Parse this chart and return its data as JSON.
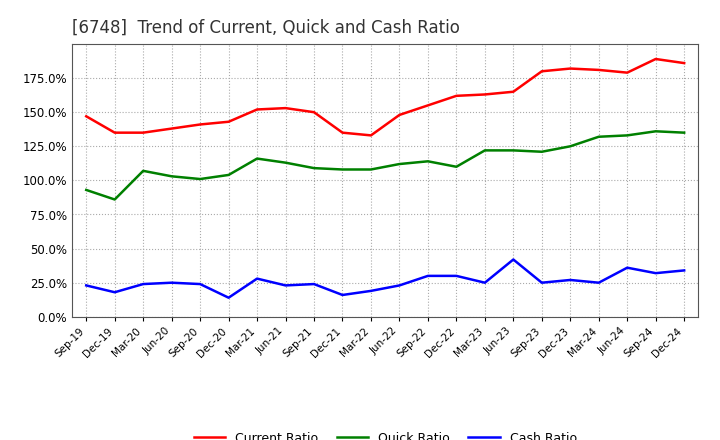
{
  "title": "[6748]  Trend of Current, Quick and Cash Ratio",
  "x_labels": [
    "Sep-19",
    "Dec-19",
    "Mar-20",
    "Jun-20",
    "Sep-20",
    "Dec-20",
    "Mar-21",
    "Jun-21",
    "Sep-21",
    "Dec-21",
    "Mar-22",
    "Jun-22",
    "Sep-22",
    "Dec-22",
    "Mar-23",
    "Jun-23",
    "Sep-23",
    "Dec-23",
    "Mar-24",
    "Jun-24",
    "Sep-24",
    "Dec-24"
  ],
  "current_ratio": [
    147.0,
    135.0,
    135.0,
    138.0,
    141.0,
    143.0,
    152.0,
    153.0,
    150.0,
    135.0,
    133.0,
    148.0,
    155.0,
    162.0,
    163.0,
    165.0,
    180.0,
    182.0,
    181.0,
    179.0,
    189.0,
    186.0
  ],
  "quick_ratio": [
    93.0,
    86.0,
    107.0,
    103.0,
    101.0,
    104.0,
    116.0,
    113.0,
    109.0,
    108.0,
    108.0,
    112.0,
    114.0,
    110.0,
    122.0,
    122.0,
    121.0,
    125.0,
    132.0,
    133.0,
    136.0,
    135.0
  ],
  "cash_ratio": [
    23.0,
    18.0,
    24.0,
    25.0,
    24.0,
    14.0,
    28.0,
    23.0,
    24.0,
    16.0,
    19.0,
    23.0,
    30.0,
    30.0,
    25.0,
    42.0,
    25.0,
    27.0,
    25.0,
    36.0,
    32.0,
    34.0
  ],
  "current_color": "#ff0000",
  "quick_color": "#008000",
  "cash_color": "#0000ff",
  "ylim": [
    0.0,
    200.0
  ],
  "yticks": [
    0.0,
    25.0,
    50.0,
    75.0,
    100.0,
    125.0,
    150.0,
    175.0
  ],
  "background_color": "#ffffff",
  "grid_color": "#aaaaaa",
  "title_fontsize": 12,
  "line_width": 1.8
}
